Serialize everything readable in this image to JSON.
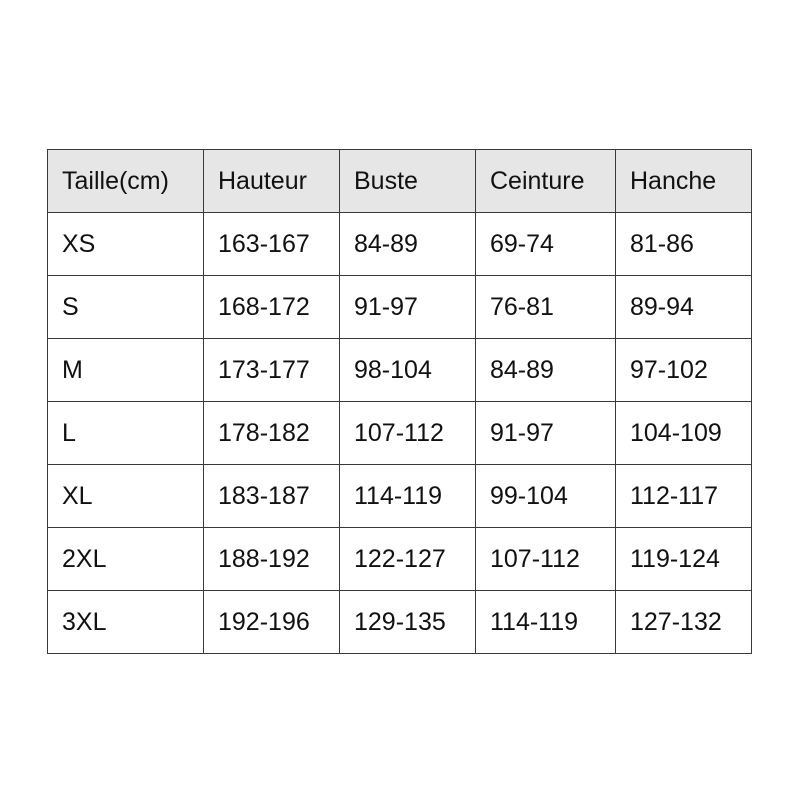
{
  "headers": [
    "Taille(cm)",
    "Hauteur",
    "Buste",
    "Ceinture",
    "Hanche"
  ],
  "rows": [
    [
      "XS",
      "163-167",
      "84-89",
      "69-74",
      "81-86"
    ],
    [
      "S",
      "168-172",
      "91-97",
      "76-81",
      "89-94"
    ],
    [
      "M",
      "173-177",
      "98-104",
      "84-89",
      "97-102"
    ],
    [
      "L",
      "178-182",
      "107-112",
      "91-97",
      "104-109"
    ],
    [
      "XL",
      "183-187",
      "114-119",
      "99-104",
      "112-117"
    ],
    [
      "2XL",
      "188-192",
      "122-127",
      "107-112",
      "119-124"
    ],
    [
      "3XL",
      "192-196",
      "129-135",
      "114-119",
      "127-132"
    ]
  ],
  "colors": {
    "header_bg": "#e6e6e6",
    "border": "#3a3a3a",
    "text": "#111111"
  }
}
